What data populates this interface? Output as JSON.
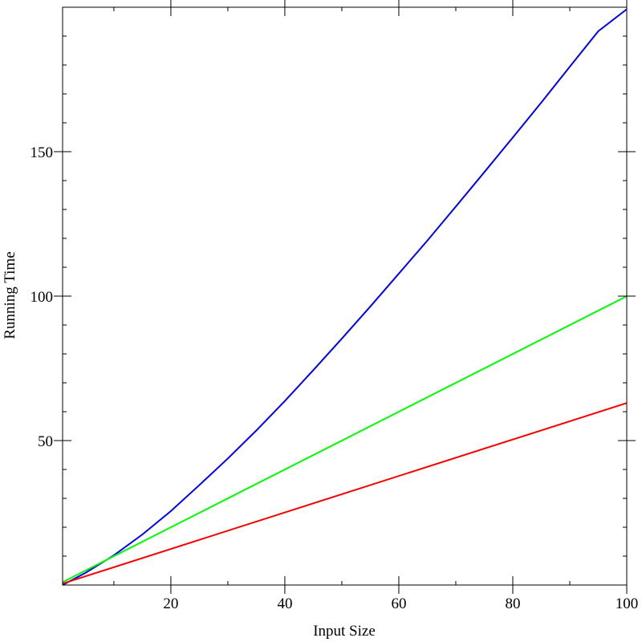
{
  "chart_data": {
    "type": "line",
    "title": "",
    "xlabel": "Input Size",
    "ylabel": "Running Time",
    "xlim": [
      1,
      100
    ],
    "ylim": [
      0,
      200
    ],
    "grid": false,
    "x_ticks": [
      20,
      40,
      60,
      80,
      100
    ],
    "y_ticks": [
      50,
      100,
      150
    ],
    "series": [
      {
        "color": "#0000ff",
        "x": [
          1,
          5,
          10,
          15,
          20,
          25,
          30,
          35,
          40,
          45,
          50,
          55,
          60,
          65,
          70,
          75,
          80,
          85,
          90,
          95,
          100
        ],
        "y": [
          0,
          4.2,
          10.3,
          17.5,
          25.6,
          34.6,
          43.8,
          53.5,
          63.7,
          74.4,
          85.3,
          96.4,
          107.8,
          119.2,
          131.0,
          142.9,
          154.9,
          167.0,
          179.4,
          191.7,
          199.3
        ]
      },
      {
        "color": "#00ff00",
        "x": [
          1,
          100
        ],
        "y": [
          1,
          100
        ]
      },
      {
        "color": "#ff0000",
        "x": [
          1,
          100
        ],
        "y": [
          0.5,
          63
        ]
      }
    ]
  }
}
